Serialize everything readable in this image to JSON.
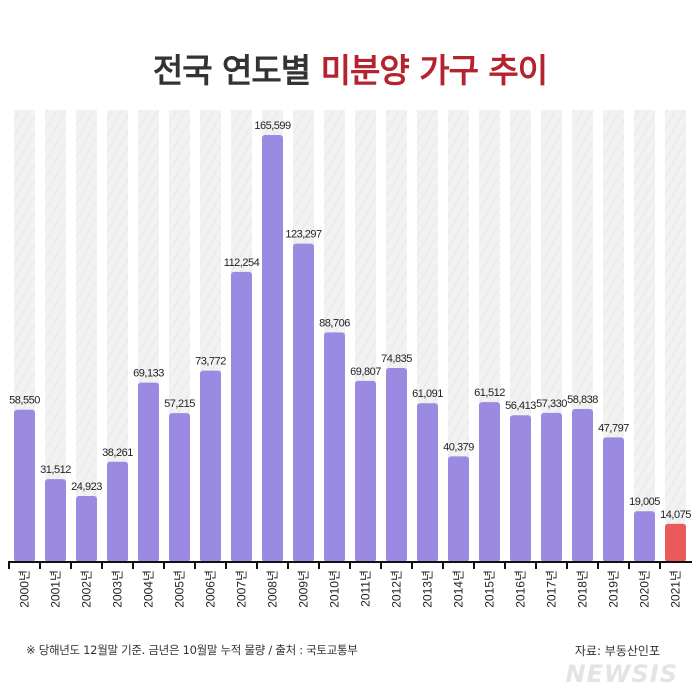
{
  "title": {
    "prefix": "전국 연도별",
    "highlight": "미분양 가구 추이"
  },
  "colors": {
    "bar": "#9b8ae2",
    "highlight_bar": "#ea5a5a",
    "title_highlight": "#b5232e",
    "stripe": "#f0f0f0"
  },
  "chart_data": {
    "type": "bar",
    "title": "전국 연도별 미분양 가구 추이",
    "categories": [
      "2000년",
      "2001년",
      "2002년",
      "2003년",
      "2004년",
      "2005년",
      "2006년",
      "2007년",
      "2008년",
      "2009년",
      "2010년",
      "2011년",
      "2012년",
      "2013년",
      "2014년",
      "2015년",
      "2016년",
      "2017년",
      "2018년",
      "2019년",
      "2020년",
      "2021년"
    ],
    "values": [
      58550,
      31512,
      24923,
      38261,
      69133,
      57215,
      73772,
      112254,
      165599,
      123297,
      88706,
      69807,
      74835,
      61091,
      40379,
      61512,
      56413,
      57330,
      58838,
      47797,
      19005,
      14075
    ],
    "labels": [
      "58,550",
      "31,512",
      "24,923",
      "38,261",
      "69,133",
      "57,215",
      "73,772",
      "112,254",
      "165,599",
      "123,297",
      "88,706",
      "69,807",
      "74,835",
      "61,091",
      "40,379",
      "61,512",
      "56,413",
      "57,330",
      "58,838",
      "47,797",
      "19,005",
      "14,075"
    ],
    "highlight_index": 21,
    "ylim": [
      0,
      175000
    ],
    "grid": false,
    "xlabel": "",
    "ylabel": ""
  },
  "footnote": "※ 당해년도 12월말 기준. 금년은 10월말 누적 물량 / 출처 : 국토교통부",
  "source": "자료: 부동산인포",
  "watermark": "NEWSIS"
}
